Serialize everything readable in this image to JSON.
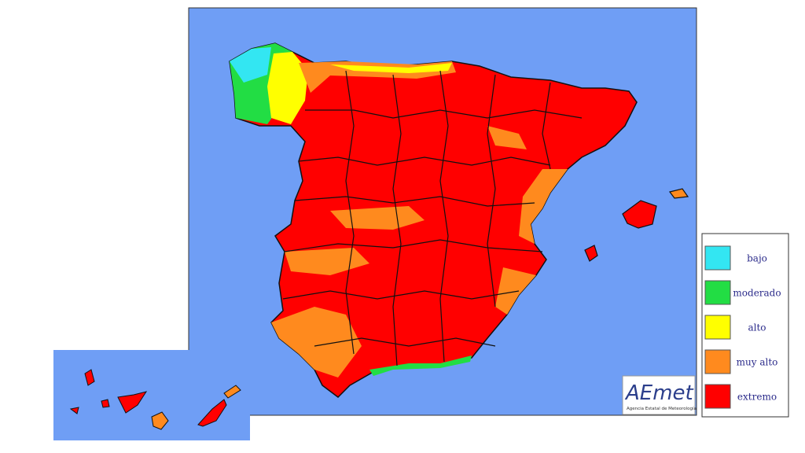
{
  "legend": {
    "items": [
      {
        "label": "bajo",
        "color": "#33e6f2"
      },
      {
        "label": "moderado",
        "color": "#22dd44"
      },
      {
        "label": "alto",
        "color": "#ffff00"
      },
      {
        "label": "muy alto",
        "color": "#ff8a1e"
      },
      {
        "label": "extremo",
        "color": "#ff0000"
      }
    ]
  },
  "logo": {
    "name": "AEmet",
    "subtitle": "Agencia Estatal de Meteorología"
  }
}
